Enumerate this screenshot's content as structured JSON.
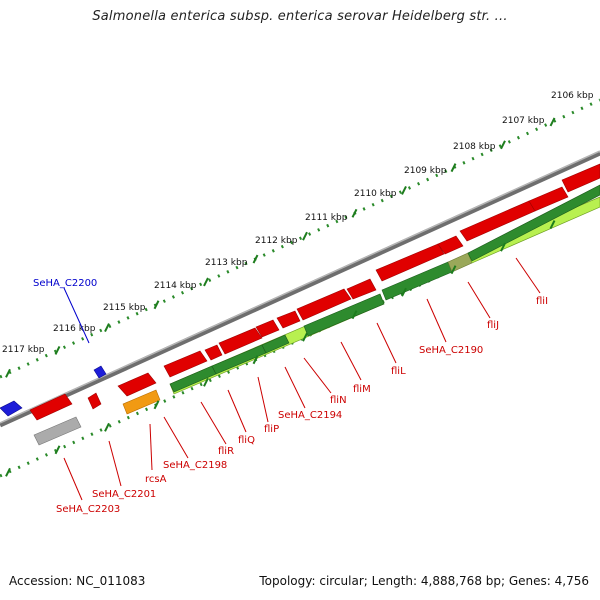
{
  "title": "Salmonella enterica subsp. enterica serovar Heidelberg str. ...",
  "footer": {
    "accession": "Accession: NC_011083",
    "summary": "Topology: circular; Length: 4,888,768 bp; Genes: 4,756"
  },
  "colors": {
    "forward_cds": "#ee0000",
    "reverse_cds": "#1d1dd8",
    "rrna": "#2e8b2e",
    "light_green": "#b8f050",
    "orange": "#f19a13",
    "gray_feature": "#a8a8a8",
    "backbone": "#8a8a8a",
    "ticks": "#1e7d1e",
    "label_red": "#cc0000",
    "label_blue": "#0000cc"
  },
  "scale": {
    "ticks": [
      "2106 kbp",
      "2107 kbp",
      "2108 kbp",
      "2109 kbp",
      "2110 kbp",
      "2111 kbp",
      "2112 kbp",
      "2113 kbp",
      "2114 kbp",
      "2115 kbp",
      "2116 kbp",
      "2117 kbp"
    ]
  },
  "gene_labels": {
    "forward": [
      "fliI",
      "fliJ",
      "SeHA_C2190",
      "fliL",
      "fliM",
      "fliN",
      "SeHA_C2194",
      "fliP",
      "fliQ",
      "fliR",
      "SeHA_C2198",
      "rcsA",
      "SeHA_C2201",
      "SeHA_C2203"
    ],
    "reverse": [
      "SeHA_C2200"
    ]
  }
}
